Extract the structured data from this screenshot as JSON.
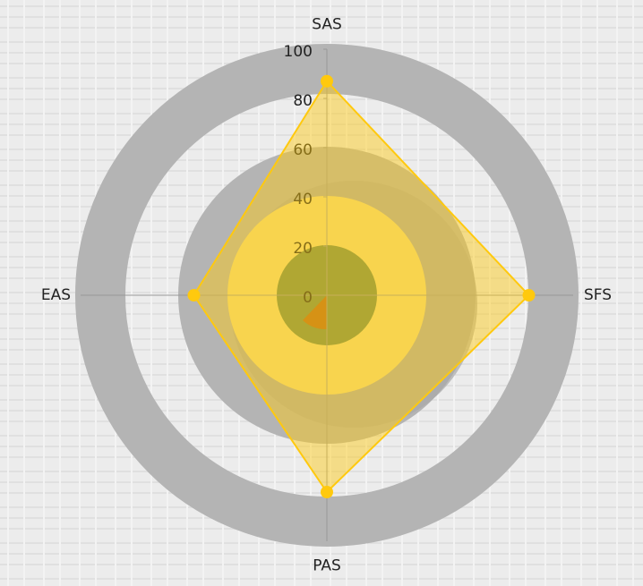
{
  "chart_data": {
    "type": "radar",
    "categories": [
      "SAS",
      "SFS",
      "PAS",
      "EAS"
    ],
    "values": [
      87,
      82,
      80,
      54
    ],
    "color": "#ffc90e",
    "rlim": [
      0,
      100
    ],
    "rticks": [
      0,
      20,
      40,
      60,
      80,
      100
    ]
  }
}
